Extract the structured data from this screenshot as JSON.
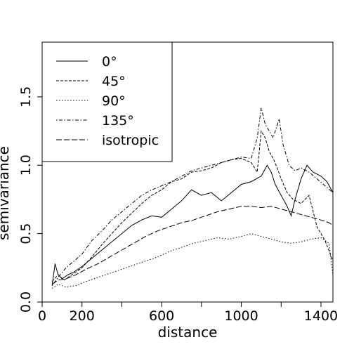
{
  "chart_data": {
    "type": "line",
    "title": "",
    "xlabel": "distance",
    "ylabel": "semivariance",
    "xlim": [
      0,
      1460
    ],
    "ylim": [
      0,
      1.9
    ],
    "x_ticks": [
      0,
      200,
      600,
      1000,
      1400
    ],
    "x_tick_labels": [
      "0",
      "200",
      "600",
      "1000",
      "1400"
    ],
    "x_minor_ticks": [
      400,
      800,
      1200
    ],
    "y_ticks": [
      0.0,
      0.5,
      1.0,
      1.5
    ],
    "y_tick_labels": [
      "0.0",
      "0.5",
      "1.0",
      "1.5"
    ],
    "grid": false,
    "legend_position": "top-left",
    "series": [
      {
        "name": "0°",
        "style": "solid",
        "x": [
          50,
          65,
          80,
          100,
          130,
          160,
          200,
          250,
          300,
          350,
          400,
          450,
          500,
          550,
          600,
          650,
          700,
          750,
          800,
          850,
          900,
          950,
          1000,
          1050,
          1100,
          1130,
          1150,
          1170,
          1200,
          1230,
          1250,
          1270,
          1300,
          1330,
          1360,
          1400,
          1430,
          1460
        ],
        "y": [
          0.12,
          0.28,
          0.2,
          0.17,
          0.2,
          0.22,
          0.26,
          0.32,
          0.38,
          0.44,
          0.5,
          0.56,
          0.6,
          0.63,
          0.62,
          0.68,
          0.74,
          0.82,
          0.78,
          0.8,
          0.74,
          0.8,
          0.86,
          0.88,
          0.92,
          1.0,
          0.95,
          0.86,
          0.78,
          0.7,
          0.63,
          0.75,
          0.9,
          1.0,
          0.95,
          0.92,
          0.88,
          0.8
        ]
      },
      {
        "name": "45°",
        "style": "dashed",
        "x": [
          50,
          80,
          110,
          150,
          200,
          250,
          300,
          350,
          400,
          450,
          500,
          550,
          600,
          650,
          700,
          750,
          800,
          850,
          900,
          950,
          1000,
          1050,
          1080,
          1100,
          1120,
          1140,
          1160,
          1180,
          1200,
          1230,
          1260,
          1300,
          1340,
          1380,
          1420,
          1460
        ],
        "y": [
          0.15,
          0.2,
          0.16,
          0.2,
          0.25,
          0.33,
          0.42,
          0.5,
          0.58,
          0.65,
          0.72,
          0.78,
          0.82,
          0.88,
          0.9,
          0.95,
          0.96,
          0.98,
          1.02,
          1.04,
          1.05,
          1.02,
          0.95,
          1.25,
          1.2,
          1.1,
          1.05,
          0.98,
          0.9,
          0.8,
          0.75,
          0.72,
          0.78,
          0.55,
          0.45,
          0.3
        ]
      },
      {
        "name": "90°",
        "style": "dotted",
        "x": [
          50,
          80,
          120,
          170,
          220,
          280,
          340,
          400,
          460,
          520,
          580,
          640,
          700,
          760,
          820,
          880,
          940,
          1000,
          1050,
          1100,
          1150,
          1200,
          1250,
          1300,
          1350,
          1400,
          1440,
          1460
        ],
        "y": [
          0.1,
          0.13,
          0.11,
          0.12,
          0.15,
          0.18,
          0.21,
          0.24,
          0.27,
          0.3,
          0.33,
          0.37,
          0.4,
          0.43,
          0.45,
          0.47,
          0.46,
          0.48,
          0.5,
          0.48,
          0.46,
          0.44,
          0.43,
          0.44,
          0.46,
          0.47,
          0.43,
          0.2
        ]
      },
      {
        "name": "135°",
        "style": "dotdash",
        "x": [
          50,
          80,
          120,
          160,
          200,
          250,
          300,
          350,
          400,
          450,
          500,
          550,
          600,
          650,
          700,
          750,
          800,
          850,
          900,
          950,
          1000,
          1050,
          1080,
          1100,
          1120,
          1140,
          1160,
          1190,
          1210,
          1240,
          1270,
          1300,
          1340,
          1380,
          1420,
          1460
        ],
        "y": [
          0.12,
          0.18,
          0.25,
          0.3,
          0.35,
          0.45,
          0.52,
          0.6,
          0.66,
          0.72,
          0.78,
          0.82,
          0.85,
          0.88,
          0.92,
          0.96,
          0.98,
          1.0,
          1.02,
          1.04,
          1.06,
          1.05,
          1.2,
          1.42,
          1.3,
          1.25,
          1.2,
          1.34,
          1.15,
          1.0,
          0.96,
          0.98,
          0.95,
          0.9,
          0.85,
          0.8
        ]
      },
      {
        "name": "isotropic",
        "style": "longdash",
        "x": [
          50,
          80,
          120,
          170,
          220,
          280,
          340,
          400,
          460,
          520,
          580,
          640,
          700,
          760,
          820,
          880,
          940,
          1000,
          1050,
          1100,
          1150,
          1200,
          1250,
          1300,
          1350,
          1400,
          1440,
          1460
        ],
        "y": [
          0.13,
          0.16,
          0.17,
          0.2,
          0.24,
          0.28,
          0.33,
          0.38,
          0.43,
          0.48,
          0.52,
          0.55,
          0.58,
          0.6,
          0.63,
          0.66,
          0.68,
          0.7,
          0.7,
          0.69,
          0.7,
          0.68,
          0.66,
          0.64,
          0.62,
          0.6,
          0.58,
          0.56
        ]
      }
    ]
  }
}
